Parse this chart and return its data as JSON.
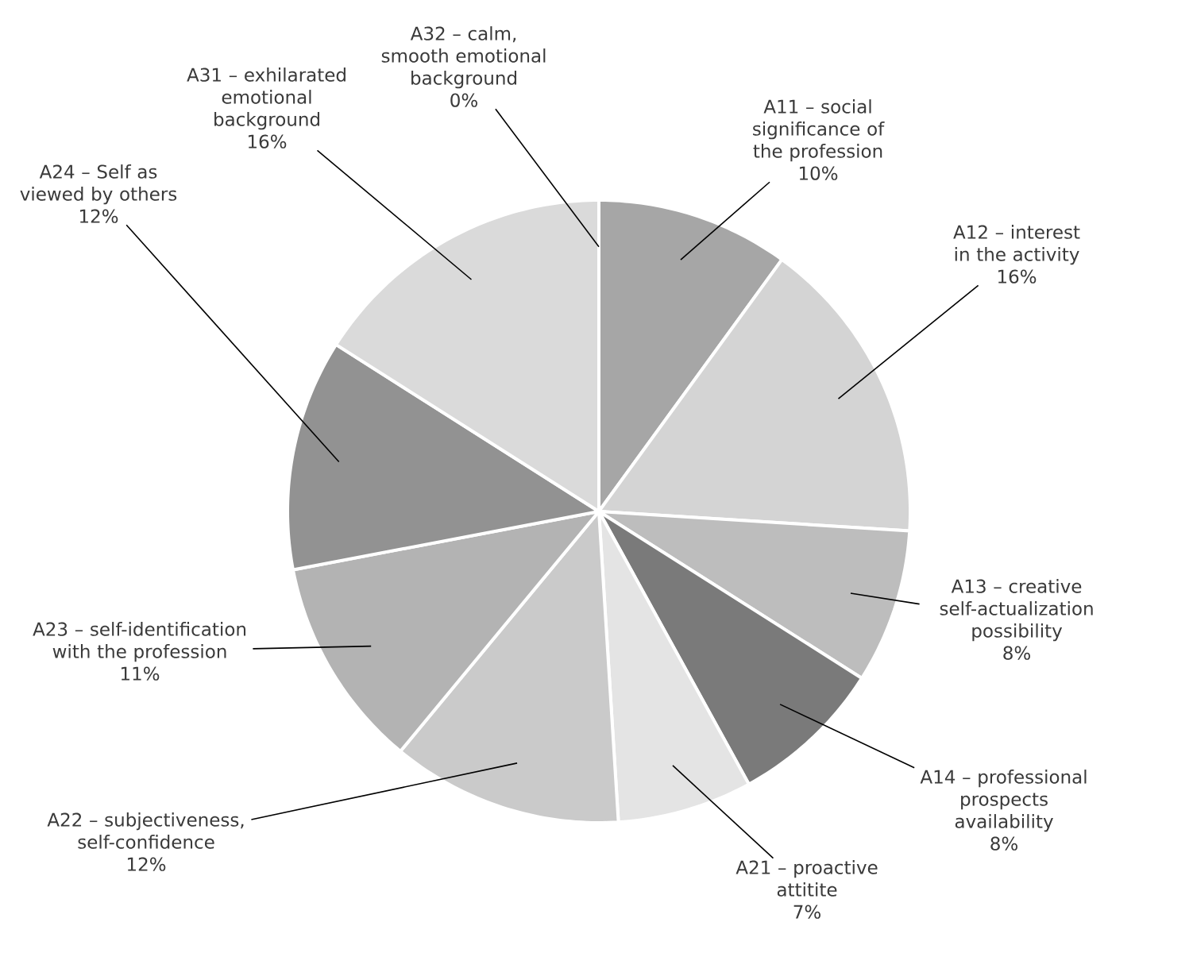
{
  "chart_data": {
    "type": "pie",
    "categories": [
      "A11 – social significance of the profession",
      "A12 – interest in the activity",
      "A13 – creative self-actualization possibility",
      "A14 – professional prospects availability",
      "A21 – proactive attitite",
      "A22 – subjectiveness, self-confidence",
      "A23 – self-identification with the profession",
      "A24 – Self as viewed by others",
      "A31 – exhilarated emotional background",
      "A32 – calm, smooth emotional background"
    ],
    "values": [
      10,
      16,
      8,
      8,
      7,
      12,
      11,
      12,
      16,
      0
    ],
    "value_labels": [
      "10%",
      "16%",
      "8%",
      "8%",
      "7%",
      "12%",
      "11%",
      "12%",
      "16%",
      "0%"
    ],
    "colors": [
      "#a6a6a6",
      "#d4d4d4",
      "#bdbdbd",
      "#7a7a7a",
      "#e4e4e4",
      "#cacaca",
      "#b3b3b3",
      "#929292",
      "#dadada",
      "#ececec"
    ]
  }
}
